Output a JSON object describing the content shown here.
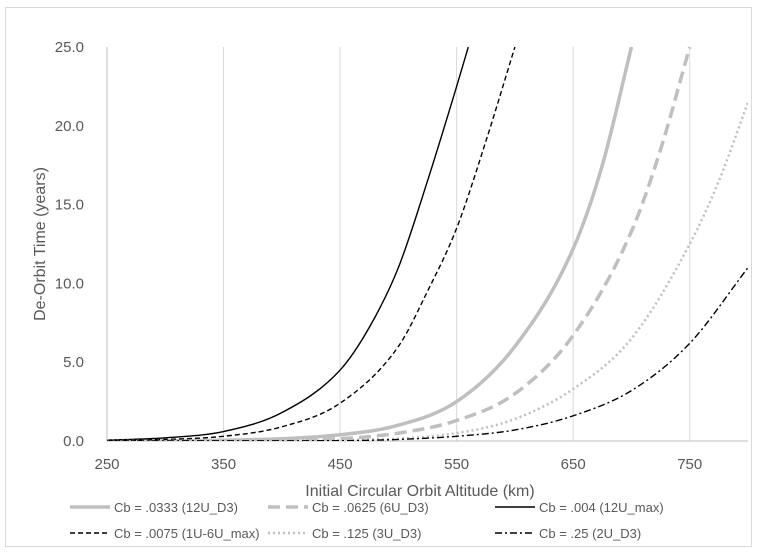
{
  "chart_data": {
    "type": "line",
    "xlabel": "Initial Circular Orbit Altitude (km)",
    "ylabel": "De-Orbit Time (years)",
    "xlim": [
      250,
      800
    ],
    "ylim": [
      0,
      25
    ],
    "xticks": [
      250,
      350,
      450,
      550,
      650,
      750
    ],
    "xtick_labels": [
      "250",
      "350",
      "450",
      "550",
      "650",
      "750"
    ],
    "yticks": [
      0,
      5,
      10,
      15,
      20,
      25
    ],
    "ytick_labels": [
      "0.0",
      "5.0",
      "10.0",
      "15.0",
      "20.0",
      "25.0"
    ],
    "grid": "vertical gridlines at x ticks",
    "legend_position": "bottom",
    "series": [
      {
        "name": "Cb = .0333 (12U_D3)",
        "style": "solid-thick",
        "color": "#bfbfbf",
        "x": [
          250,
          350,
          450,
          500,
          550,
          600,
          650,
          675,
          700
        ],
        "y": [
          0.01,
          0.05,
          0.4,
          1.0,
          2.5,
          6.0,
          12.2,
          17.5,
          25.0
        ]
      },
      {
        "name": "Cb = .0625 (6U_D3)",
        "style": "dashed-thick",
        "color": "#bfbfbf",
        "x": [
          250,
          350,
          450,
          500,
          550,
          600,
          650,
          700,
          725,
          750
        ],
        "y": [
          0.0,
          0.02,
          0.15,
          0.5,
          1.3,
          3.0,
          6.7,
          13.3,
          18.5,
          25.0
        ]
      },
      {
        "name": "Cb = .004 (12U_max)",
        "style": "solid-thin",
        "color": "#000000",
        "x": [
          250,
          300,
          350,
          400,
          450,
          475,
          500,
          525,
          550,
          560
        ],
        "y": [
          0.05,
          0.2,
          0.6,
          1.8,
          4.5,
          7.2,
          11.0,
          16.5,
          22.5,
          25.0
        ]
      },
      {
        "name": "Cb = .0075 (1U-6U_max)",
        "style": "dashed-thin",
        "color": "#000000",
        "x": [
          250,
          300,
          350,
          400,
          450,
          500,
          525,
          550,
          575,
          600
        ],
        "y": [
          0.02,
          0.1,
          0.3,
          0.9,
          2.4,
          6.0,
          9.5,
          13.5,
          19.0,
          25.0
        ]
      },
      {
        "name": "Cb = .125 (3U_D3)",
        "style": "dotted",
        "color": "#bfbfbf",
        "x": [
          250,
          350,
          450,
          550,
          600,
          650,
          700,
          750,
          775,
          800
        ],
        "y": [
          0.0,
          0.01,
          0.05,
          0.5,
          1.4,
          3.3,
          6.5,
          12.5,
          16.5,
          21.5
        ]
      },
      {
        "name": "Cb = .25 (2U_D3)",
        "style": "dash-dot",
        "color": "#000000",
        "x": [
          250,
          350,
          450,
          500,
          550,
          600,
          650,
          700,
          750,
          800
        ],
        "y": [
          0.0,
          0.01,
          0.02,
          0.1,
          0.3,
          0.7,
          1.6,
          3.2,
          6.2,
          11.0
        ]
      }
    ]
  }
}
